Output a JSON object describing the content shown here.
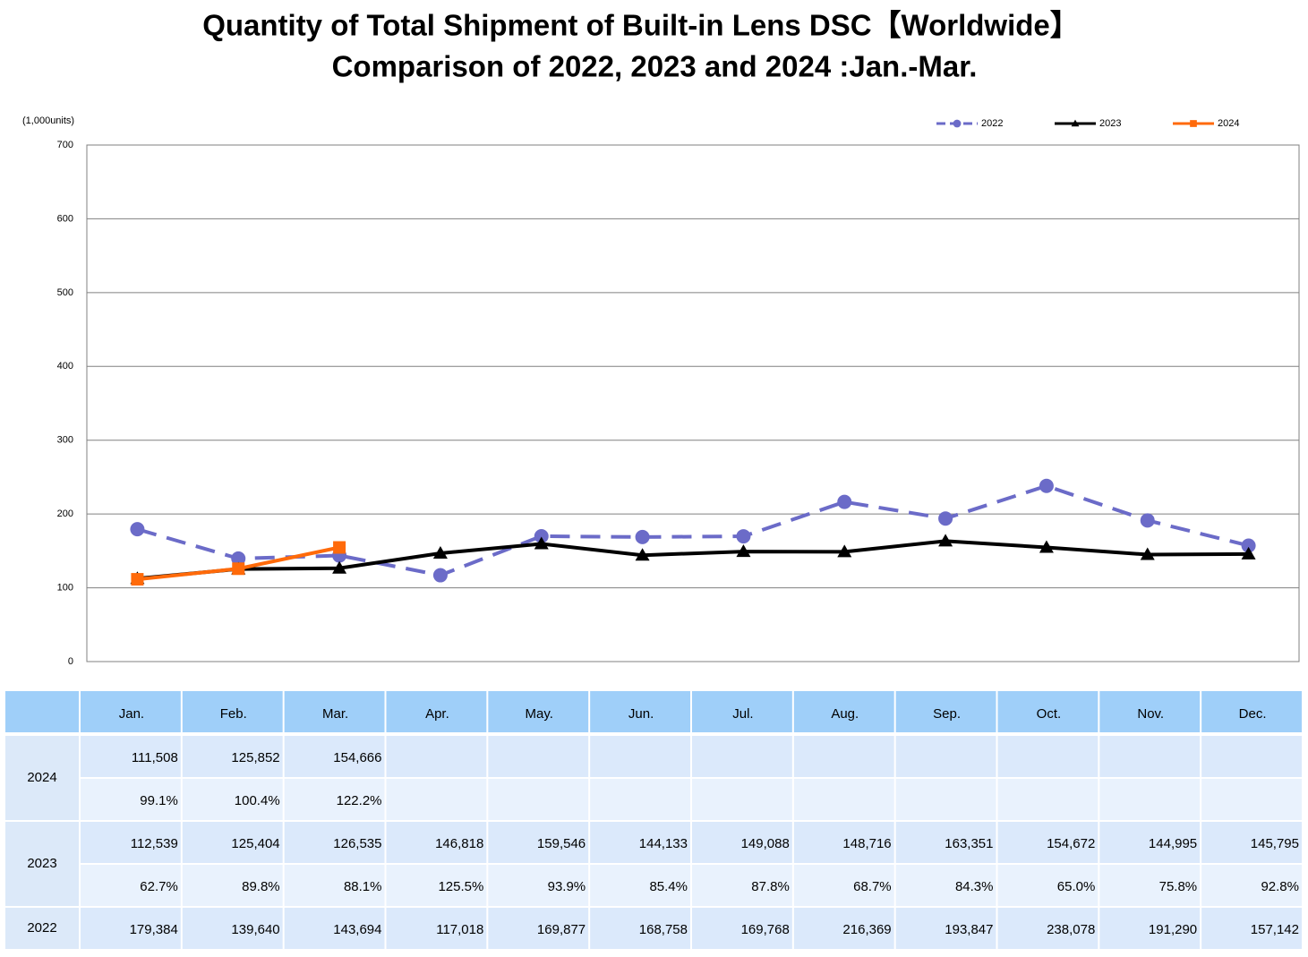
{
  "chart_data": {
    "type": "line",
    "title": "Quantity of Total Shipment of Built-in Lens DSC【Worldwide】",
    "subtitle": "Comparison of 2022, 2023 and 2024 :Jan.-Mar.",
    "y_label": "(1,000units)",
    "ylim": [
      0,
      700
    ],
    "yticks": [
      0,
      100,
      200,
      300,
      400,
      500,
      600,
      700
    ],
    "grid": true,
    "legend": "top-right",
    "series": [
      {
        "name": "2022",
        "color": "#6b6bc8",
        "dashed": true,
        "marker": "circle",
        "values": [
          179.384,
          139.64,
          143.694,
          117.018,
          169.877,
          168.758,
          169.768,
          216.369,
          193.847,
          238.078,
          191.29,
          157.142
        ]
      },
      {
        "name": "2023",
        "color": "#000000",
        "dashed": false,
        "marker": "triangle",
        "values": [
          112.539,
          125.404,
          126.535,
          146.818,
          159.546,
          144.133,
          149.088,
          148.716,
          163.351,
          154.672,
          144.995,
          145.795
        ]
      },
      {
        "name": "2024",
        "color": "#ff6a0a",
        "dashed": false,
        "marker": "square",
        "values": [
          111.508,
          125.852,
          154.666
        ]
      }
    ]
  },
  "table": {
    "columns": [
      "Jan.",
      "Feb.",
      "Mar.",
      "Apr.",
      "May.",
      "Jun.",
      "Jul.",
      "Aug.",
      "Sep.",
      "Oct.",
      "Nov.",
      "Dec."
    ],
    "rows": [
      {
        "label": "2024",
        "values": [
          "111,508",
          "125,852",
          "154,666"
        ],
        "ratios": [
          "99.1%",
          "100.4%",
          "122.2%"
        ]
      },
      {
        "label": "2023",
        "values": [
          "112,539",
          "125,404",
          "126,535",
          "146,818",
          "159,546",
          "144,133",
          "149,088",
          "148,716",
          "163,351",
          "154,672",
          "144,995",
          "145,795"
        ],
        "ratios": [
          "62.7%",
          "89.8%",
          "88.1%",
          "125.5%",
          "93.9%",
          "85.4%",
          "87.8%",
          "68.7%",
          "84.3%",
          "65.0%",
          "75.8%",
          "92.8%"
        ]
      },
      {
        "label": "2022",
        "values": [
          "179,384",
          "139,640",
          "143,694",
          "117,018",
          "169,877",
          "168,758",
          "169,768",
          "216,369",
          "193,847",
          "238,078",
          "191,290",
          "157,142"
        ]
      }
    ]
  }
}
